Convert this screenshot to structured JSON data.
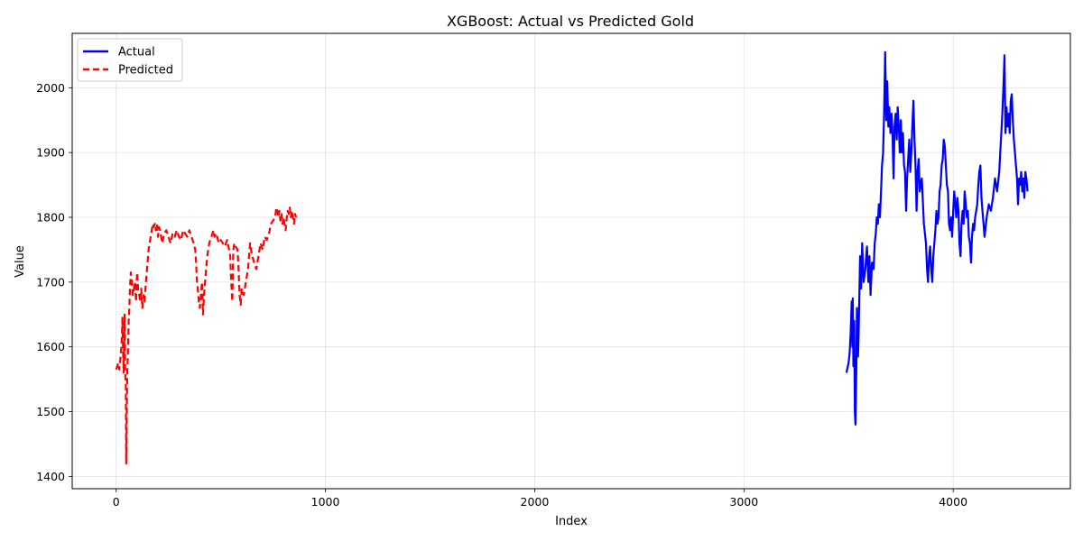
{
  "chart_data": {
    "type": "line",
    "title": "XGBoost: Actual vs Predicted Gold",
    "xlabel": "Index",
    "ylabel": "Value",
    "xlim": [
      -210,
      4560
    ],
    "ylim": [
      1381,
      2084
    ],
    "xticks": [
      0,
      1000,
      2000,
      3000,
      4000
    ],
    "yticks": [
      1400,
      1500,
      1600,
      1700,
      1800,
      1900,
      2000
    ],
    "grid": true,
    "legend_position": "top-left",
    "series": [
      {
        "name": "Actual",
        "color": "#0000ff",
        "style": "solid",
        "points": [
          [
            3490,
            1560
          ],
          [
            3500,
            1575
          ],
          [
            3505,
            1590
          ],
          [
            3510,
            1620
          ],
          [
            3515,
            1670
          ],
          [
            3518,
            1600
          ],
          [
            3520,
            1675
          ],
          [
            3523,
            1570
          ],
          [
            3527,
            1640
          ],
          [
            3530,
            1500
          ],
          [
            3533,
            1480
          ],
          [
            3537,
            1560
          ],
          [
            3540,
            1660
          ],
          [
            3545,
            1585
          ],
          [
            3548,
            1620
          ],
          [
            3555,
            1740
          ],
          [
            3560,
            1690
          ],
          [
            3565,
            1760
          ],
          [
            3572,
            1700
          ],
          [
            3580,
            1720
          ],
          [
            3588,
            1755
          ],
          [
            3595,
            1700
          ],
          [
            3600,
            1740
          ],
          [
            3605,
            1680
          ],
          [
            3612,
            1730
          ],
          [
            3620,
            1720
          ],
          [
            3625,
            1760
          ],
          [
            3630,
            1775
          ],
          [
            3635,
            1800
          ],
          [
            3640,
            1790
          ],
          [
            3645,
            1820
          ],
          [
            3650,
            1800
          ],
          [
            3655,
            1840
          ],
          [
            3660,
            1880
          ],
          [
            3665,
            1900
          ],
          [
            3670,
            1960
          ],
          [
            3675,
            2055
          ],
          [
            3680,
            1950
          ],
          [
            3685,
            2010
          ],
          [
            3690,
            1940
          ],
          [
            3695,
            1970
          ],
          [
            3700,
            1930
          ],
          [
            3705,
            1960
          ],
          [
            3710,
            1930
          ],
          [
            3715,
            1860
          ],
          [
            3720,
            1940
          ],
          [
            3725,
            1960
          ],
          [
            3730,
            1920
          ],
          [
            3735,
            1970
          ],
          [
            3740,
            1940
          ],
          [
            3745,
            1900
          ],
          [
            3750,
            1950
          ],
          [
            3755,
            1900
          ],
          [
            3760,
            1930
          ],
          [
            3765,
            1880
          ],
          [
            3770,
            1870
          ],
          [
            3775,
            1810
          ],
          [
            3780,
            1860
          ],
          [
            3785,
            1890
          ],
          [
            3790,
            1920
          ],
          [
            3795,
            1870
          ],
          [
            3800,
            1900
          ],
          [
            3805,
            1940
          ],
          [
            3810,
            1980
          ],
          [
            3815,
            1920
          ],
          [
            3820,
            1880
          ],
          [
            3825,
            1810
          ],
          [
            3830,
            1870
          ],
          [
            3835,
            1890
          ],
          [
            3840,
            1840
          ],
          [
            3850,
            1860
          ],
          [
            3860,
            1790
          ],
          [
            3870,
            1760
          ],
          [
            3875,
            1720
          ],
          [
            3880,
            1700
          ],
          [
            3885,
            1740
          ],
          [
            3890,
            1755
          ],
          [
            3895,
            1720
          ],
          [
            3900,
            1700
          ],
          [
            3905,
            1740
          ],
          [
            3910,
            1760
          ],
          [
            3915,
            1780
          ],
          [
            3920,
            1810
          ],
          [
            3925,
            1790
          ],
          [
            3930,
            1800
          ],
          [
            3935,
            1840
          ],
          [
            3940,
            1850
          ],
          [
            3945,
            1880
          ],
          [
            3950,
            1890
          ],
          [
            3955,
            1920
          ],
          [
            3960,
            1910
          ],
          [
            3965,
            1880
          ],
          [
            3970,
            1850
          ],
          [
            3975,
            1840
          ],
          [
            3980,
            1790
          ],
          [
            3985,
            1780
          ],
          [
            3990,
            1800
          ],
          [
            3995,
            1770
          ],
          [
            4000,
            1810
          ],
          [
            4005,
            1840
          ],
          [
            4010,
            1820
          ],
          [
            4015,
            1800
          ],
          [
            4020,
            1830
          ],
          [
            4025,
            1810
          ],
          [
            4030,
            1760
          ],
          [
            4035,
            1740
          ],
          [
            4040,
            1790
          ],
          [
            4045,
            1810
          ],
          [
            4050,
            1790
          ],
          [
            4055,
            1840
          ],
          [
            4060,
            1820
          ],
          [
            4065,
            1800
          ],
          [
            4070,
            1810
          ],
          [
            4075,
            1770
          ],
          [
            4080,
            1760
          ],
          [
            4085,
            1730
          ],
          [
            4090,
            1770
          ],
          [
            4095,
            1790
          ],
          [
            4100,
            1780
          ],
          [
            4105,
            1800
          ],
          [
            4110,
            1810
          ],
          [
            4115,
            1820
          ],
          [
            4120,
            1850
          ],
          [
            4125,
            1870
          ],
          [
            4130,
            1880
          ],
          [
            4135,
            1830
          ],
          [
            4140,
            1810
          ],
          [
            4145,
            1790
          ],
          [
            4150,
            1770
          ],
          [
            4160,
            1800
          ],
          [
            4170,
            1820
          ],
          [
            4180,
            1810
          ],
          [
            4190,
            1830
          ],
          [
            4200,
            1860
          ],
          [
            4210,
            1840
          ],
          [
            4220,
            1870
          ],
          [
            4225,
            1900
          ],
          [
            4230,
            1930
          ],
          [
            4235,
            1960
          ],
          [
            4240,
            2000
          ],
          [
            4245,
            2050
          ],
          [
            4250,
            1930
          ],
          [
            4255,
            1970
          ],
          [
            4260,
            1940
          ],
          [
            4265,
            1960
          ],
          [
            4270,
            1930
          ],
          [
            4275,
            1980
          ],
          [
            4280,
            1990
          ],
          [
            4285,
            1950
          ],
          [
            4290,
            1920
          ],
          [
            4295,
            1900
          ],
          [
            4300,
            1880
          ],
          [
            4305,
            1860
          ],
          [
            4310,
            1820
          ],
          [
            4315,
            1860
          ],
          [
            4320,
            1850
          ],
          [
            4325,
            1870
          ],
          [
            4330,
            1840
          ],
          [
            4335,
            1860
          ],
          [
            4340,
            1830
          ],
          [
            4345,
            1870
          ],
          [
            4350,
            1860
          ],
          [
            4355,
            1840
          ]
        ]
      },
      {
        "name": "Predicted",
        "color": "#ff0000",
        "style": "dashed",
        "points": [
          [
            0,
            1565
          ],
          [
            5,
            1570
          ],
          [
            10,
            1575
          ],
          [
            15,
            1565
          ],
          [
            20,
            1580
          ],
          [
            25,
            1600
          ],
          [
            28,
            1620
          ],
          [
            30,
            1645
          ],
          [
            33,
            1600
          ],
          [
            36,
            1560
          ],
          [
            40,
            1650
          ],
          [
            43,
            1560
          ],
          [
            46,
            1540
          ],
          [
            48,
            1420
          ],
          [
            50,
            1480
          ],
          [
            53,
            1560
          ],
          [
            57,
            1600
          ],
          [
            60,
            1640
          ],
          [
            63,
            1660
          ],
          [
            66,
            1690
          ],
          [
            70,
            1715
          ],
          [
            75,
            1700
          ],
          [
            80,
            1680
          ],
          [
            85,
            1690
          ],
          [
            90,
            1700
          ],
          [
            95,
            1670
          ],
          [
            100,
            1715
          ],
          [
            105,
            1690
          ],
          [
            110,
            1680
          ],
          [
            115,
            1670
          ],
          [
            120,
            1690
          ],
          [
            125,
            1660
          ],
          [
            130,
            1680
          ],
          [
            135,
            1670
          ],
          [
            140,
            1690
          ],
          [
            145,
            1710
          ],
          [
            150,
            1730
          ],
          [
            155,
            1750
          ],
          [
            160,
            1760
          ],
          [
            165,
            1770
          ],
          [
            170,
            1780
          ],
          [
            175,
            1790
          ],
          [
            180,
            1785
          ],
          [
            185,
            1790
          ],
          [
            190,
            1780
          ],
          [
            195,
            1790
          ],
          [
            200,
            1770
          ],
          [
            205,
            1785
          ],
          [
            210,
            1780
          ],
          [
            215,
            1770
          ],
          [
            220,
            1760
          ],
          [
            230,
            1775
          ],
          [
            240,
            1780
          ],
          [
            250,
            1770
          ],
          [
            260,
            1760
          ],
          [
            270,
            1775
          ],
          [
            280,
            1770
          ],
          [
            290,
            1780
          ],
          [
            300,
            1770
          ],
          [
            310,
            1765
          ],
          [
            320,
            1780
          ],
          [
            330,
            1775
          ],
          [
            340,
            1770
          ],
          [
            350,
            1780
          ],
          [
            360,
            1770
          ],
          [
            370,
            1760
          ],
          [
            378,
            1750
          ],
          [
            382,
            1730
          ],
          [
            386,
            1700
          ],
          [
            390,
            1690
          ],
          [
            395,
            1670
          ],
          [
            400,
            1660
          ],
          [
            405,
            1680
          ],
          [
            410,
            1700
          ],
          [
            415,
            1650
          ],
          [
            420,
            1680
          ],
          [
            425,
            1700
          ],
          [
            430,
            1720
          ],
          [
            435,
            1740
          ],
          [
            440,
            1750
          ],
          [
            445,
            1760
          ],
          [
            450,
            1765
          ],
          [
            455,
            1770
          ],
          [
            460,
            1775
          ],
          [
            465,
            1780
          ],
          [
            470,
            1770
          ],
          [
            480,
            1775
          ],
          [
            490,
            1760
          ],
          [
            500,
            1765
          ],
          [
            510,
            1760
          ],
          [
            520,
            1755
          ],
          [
            530,
            1765
          ],
          [
            540,
            1750
          ],
          [
            545,
            1740
          ],
          [
            550,
            1700
          ],
          [
            555,
            1670
          ],
          [
            560,
            1750
          ],
          [
            565,
            1760
          ],
          [
            570,
            1755
          ],
          [
            580,
            1750
          ],
          [
            585,
            1720
          ],
          [
            590,
            1680
          ],
          [
            595,
            1665
          ],
          [
            600,
            1690
          ],
          [
            610,
            1680
          ],
          [
            620,
            1700
          ],
          [
            630,
            1720
          ],
          [
            640,
            1760
          ],
          [
            650,
            1740
          ],
          [
            660,
            1730
          ],
          [
            670,
            1720
          ],
          [
            680,
            1740
          ],
          [
            690,
            1760
          ],
          [
            700,
            1750
          ],
          [
            710,
            1770
          ],
          [
            720,
            1765
          ],
          [
            730,
            1775
          ],
          [
            740,
            1790
          ],
          [
            750,
            1795
          ],
          [
            760,
            1800
          ],
          [
            765,
            1815
          ],
          [
            770,
            1810
          ],
          [
            775,
            1800
          ],
          [
            780,
            1810
          ],
          [
            785,
            1795
          ],
          [
            790,
            1805
          ],
          [
            795,
            1790
          ],
          [
            800,
            1800
          ],
          [
            805,
            1790
          ],
          [
            810,
            1780
          ],
          [
            815,
            1800
          ],
          [
            820,
            1810
          ],
          [
            825,
            1805
          ],
          [
            830,
            1815
          ],
          [
            835,
            1800
          ],
          [
            840,
            1810
          ],
          [
            845,
            1800
          ],
          [
            850,
            1790
          ],
          [
            855,
            1805
          ],
          [
            860,
            1800
          ]
        ]
      }
    ]
  }
}
